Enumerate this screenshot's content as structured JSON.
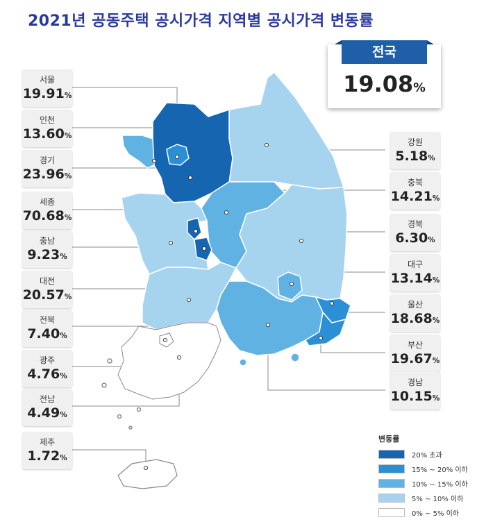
{
  "title": "2021년 공동주택 공시가격 지역별 공시가격 변동률",
  "national": {
    "name": "전국",
    "value": "19.08",
    "unit": "%"
  },
  "regions": [
    {
      "key": "seoul",
      "name": "서울",
      "value": "19.91",
      "unit": "%"
    },
    {
      "key": "incheon",
      "name": "인천",
      "value": "13.60",
      "unit": "%"
    },
    {
      "key": "gyeonggi",
      "name": "경기",
      "value": "23.96",
      "unit": "%"
    },
    {
      "key": "sejong",
      "name": "세종",
      "value": "70.68",
      "unit": "%"
    },
    {
      "key": "chungnam",
      "name": "충남",
      "value": "9.23",
      "unit": "%"
    },
    {
      "key": "daejeon",
      "name": "대전",
      "value": "20.57",
      "unit": "%"
    },
    {
      "key": "jeonbuk",
      "name": "전북",
      "value": "7.40",
      "unit": "%"
    },
    {
      "key": "gwangju",
      "name": "광주",
      "value": "4.76",
      "unit": "%"
    },
    {
      "key": "jeonnam",
      "name": "전남",
      "value": "4.49",
      "unit": "%"
    },
    {
      "key": "jeju",
      "name": "제주",
      "value": "1.72",
      "unit": "%"
    },
    {
      "key": "gangwon",
      "name": "강원",
      "value": "5.18",
      "unit": "%"
    },
    {
      "key": "chungbuk",
      "name": "충북",
      "value": "14.21",
      "unit": "%"
    },
    {
      "key": "gyeongbuk",
      "name": "경북",
      "value": "6.30",
      "unit": "%"
    },
    {
      "key": "daegu",
      "name": "대구",
      "value": "13.14",
      "unit": "%"
    },
    {
      "key": "ulsan",
      "name": "울산",
      "value": "18.68",
      "unit": "%"
    },
    {
      "key": "busan",
      "name": "부산",
      "value": "19.67",
      "unit": "%"
    },
    {
      "key": "gyeongnam",
      "name": "경남",
      "value": "10.15",
      "unit": "%"
    }
  ],
  "legend": {
    "title": "변동률",
    "items": [
      {
        "label": "20% 초과",
        "color": "#1565b0"
      },
      {
        "label": "15% ~ 20% 이하",
        "color": "#2b8fd6"
      },
      {
        "label": "10% ~ 15% 이하",
        "color": "#5fb2e2"
      },
      {
        "label": "5% ~ 10% 이하",
        "color": "#a6d4ef"
      },
      {
        "label": "0% ~ 5% 이하",
        "color": "#ffffff"
      }
    ]
  }
}
